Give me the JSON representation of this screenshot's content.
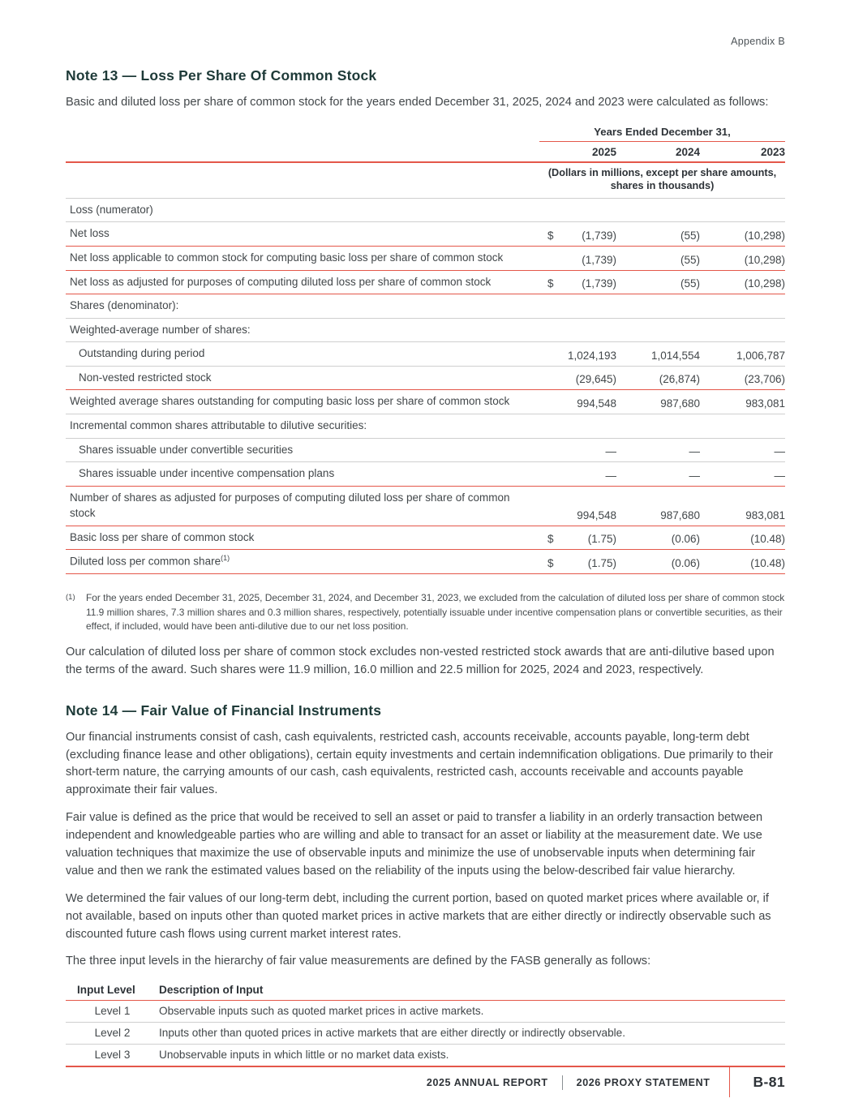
{
  "colors": {
    "accent_red": "#e4574a",
    "heading_teal": "#1e3a38",
    "rule_gray": "#cfcfcf",
    "text": "#42474a"
  },
  "page": {
    "header_right": "Appendix B",
    "footer": {
      "left": "2025 ANNUAL REPORT",
      "middle": "2026 PROXY STATEMENT",
      "page_number": "B-81"
    }
  },
  "note13": {
    "title": "Note 13 — Loss Per Share Of Common Stock",
    "intro": "Basic and diluted loss per share of common stock for the years ended December 31, 2025, 2024 and 2023 were calculated as follows:",
    "table": {
      "col_group_header": "Years Ended December 31,",
      "years": [
        "2025",
        "2024",
        "2023"
      ],
      "units_note": "(Dollars in millions, except per share amounts, shares in thousands)",
      "rows": [
        {
          "label": "Loss (numerator)",
          "indent": 0,
          "dollar": "",
          "values": [
            "",
            "",
            ""
          ],
          "border": "gray"
        },
        {
          "label": "Net loss",
          "indent": 0,
          "dollar": "$",
          "values": [
            "(1,739)",
            "(55)",
            "(10,298)"
          ],
          "border": "red"
        },
        {
          "label": "Net loss applicable to common stock for computing basic loss per share of common stock",
          "indent": 0,
          "dollar": "",
          "values": [
            "(1,739)",
            "(55)",
            "(10,298)"
          ],
          "border": "red"
        },
        {
          "label": "Net loss as adjusted for purposes of computing diluted loss per share of common stock",
          "indent": 0,
          "dollar": "$",
          "values": [
            "(1,739)",
            "(55)",
            "(10,298)"
          ],
          "border": "red"
        },
        {
          "label": "Shares (denominator):",
          "indent": 0,
          "dollar": "",
          "values": [
            "",
            "",
            ""
          ],
          "border": "gray"
        },
        {
          "label": "Weighted-average number of shares:",
          "indent": 0,
          "dollar": "",
          "values": [
            "",
            "",
            ""
          ],
          "border": "gray"
        },
        {
          "label": "Outstanding during period",
          "indent": 1,
          "dollar": "",
          "values": [
            "1,024,193",
            "1,014,554",
            "1,006,787"
          ],
          "border": "gray"
        },
        {
          "label": "Non-vested restricted stock",
          "indent": 1,
          "dollar": "",
          "values": [
            "(29,645)",
            "(26,874)",
            "(23,706)"
          ],
          "border": "red"
        },
        {
          "label": "Weighted average shares outstanding for computing basic loss per share of common stock",
          "indent": 0,
          "dollar": "",
          "values": [
            "994,548",
            "987,680",
            "983,081"
          ],
          "border": "gray"
        },
        {
          "label": "Incremental common shares attributable to dilutive securities:",
          "indent": 0,
          "dollar": "",
          "values": [
            "",
            "",
            ""
          ],
          "border": "gray"
        },
        {
          "label": "Shares issuable under convertible securities",
          "indent": 1,
          "dollar": "",
          "values": [
            "—",
            "—",
            "—"
          ],
          "border": "gray"
        },
        {
          "label": "Shares issuable under incentive compensation plans",
          "indent": 1,
          "dollar": "",
          "values": [
            "—",
            "—",
            "—"
          ],
          "border": "red"
        },
        {
          "label": "Number of shares as adjusted for purposes of computing diluted loss per share of common stock",
          "indent": 0,
          "dollar": "",
          "values": [
            "994,548",
            "987,680",
            "983,081"
          ],
          "border": "red"
        },
        {
          "label": "Basic loss per share of common stock",
          "indent": 0,
          "dollar": "$",
          "values": [
            "(1.75)",
            "(0.06)",
            "(10.48)"
          ],
          "border": "red"
        },
        {
          "label": "Diluted loss per common share",
          "sup": "(1)",
          "indent": 0,
          "dollar": "$",
          "values": [
            "(1.75)",
            "(0.06)",
            "(10.48)"
          ],
          "border": "red"
        }
      ]
    },
    "footnote_marker": "(1)",
    "footnote": "For the years ended December 31, 2025, December 31, 2024, and December 31, 2023, we excluded from the calculation of diluted loss per share of common stock 11.9 million shares, 7.3 million shares and 0.3 million shares, respectively, potentially issuable under incentive compensation plans or convertible securities, as their effect, if included, would have been anti-dilutive due to our net loss position.",
    "closing_para": "Our calculation of diluted loss per share of common stock excludes non-vested restricted stock awards that are anti-dilutive based upon the terms of the award. Such shares were 11.9 million, 16.0 million and 22.5 million for 2025, 2024 and 2023, respectively."
  },
  "note14": {
    "title": "Note 14 — Fair Value of Financial Instruments",
    "paragraphs": [
      "Our financial instruments consist of cash, cash equivalents, restricted cash, accounts receivable, accounts payable, long-term debt (excluding finance lease and other obligations), certain equity investments and certain indemnification obligations. Due primarily to their short-term nature, the carrying amounts of our cash, cash equivalents, restricted cash, accounts receivable and accounts payable approximate their fair values.",
      "Fair value is defined as the price that would be received to sell an asset or paid to transfer a liability in an orderly transaction between independent and knowledgeable parties who are willing and able to transact for an asset or liability at the measurement date. We use valuation techniques that maximize the use of observable inputs and minimize the use of unobservable inputs when determining fair value and then we rank the estimated values based on the reliability of the inputs using the below-described fair value hierarchy.",
      "We determined the fair values of our long-term debt, including the current portion, based on quoted market prices where available or, if not available, based on inputs other than quoted market prices in active markets that are either directly or indirectly observable such as discounted future cash flows using current market interest rates.",
      "The three input levels in the hierarchy of fair value measurements are defined by the FASB generally as follows:"
    ],
    "levels_table": {
      "headers": [
        "Input Level",
        "Description of Input"
      ],
      "rows": [
        {
          "level": "Level 1",
          "description": "Observable inputs such as quoted market prices in active markets.",
          "border": "gray"
        },
        {
          "level": "Level 2",
          "description": "Inputs other than quoted prices in active markets that are either directly or indirectly observable.",
          "border": "gray"
        },
        {
          "level": "Level 3",
          "description": "Unobservable inputs in which little or no market data exists.",
          "border": "red"
        }
      ]
    }
  }
}
